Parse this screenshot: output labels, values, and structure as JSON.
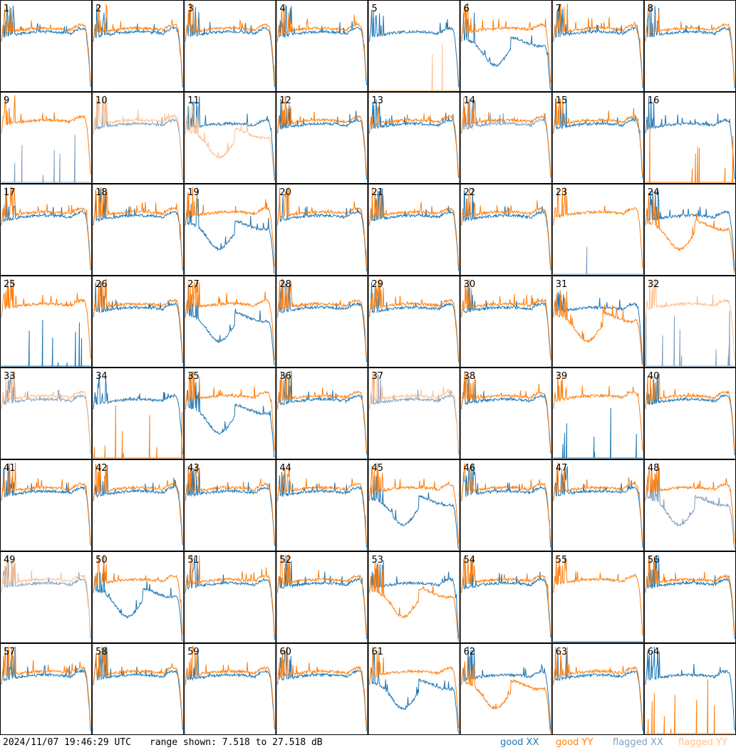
{
  "footer": {
    "timestamp": "2024/11/07 19:46:29 UTC",
    "range": "range shown: 7.518 to 27.518 dB",
    "legend": [
      {
        "label": "good XX",
        "color": "#1f77b4"
      },
      {
        "label": "good YY",
        "color": "#ff7f0e"
      },
      {
        "label": "flagged XX",
        "color": "#7f9fbf"
      },
      {
        "label": "flagged YY",
        "color": "#ffbf8f"
      }
    ]
  },
  "chart_data": {
    "type": "line",
    "layout": "8x8 small multiples",
    "y_range_db": [
      7.518,
      27.518
    ],
    "colors": {
      "good_xx": "#1f77b4",
      "good_yy": "#ff7f0e",
      "flagged_xx": "#7f9fbf",
      "flagged_yy": "#ffbf8f"
    },
    "panels": [
      {
        "id": "1",
        "xx": "good",
        "yy": "good",
        "xxShape": "normal",
        "yyShape": "normal"
      },
      {
        "id": "2",
        "xx": "good",
        "yy": "good",
        "xxShape": "normal",
        "yyShape": "normal"
      },
      {
        "id": "3",
        "xx": "good",
        "yy": "good",
        "xxShape": "normal",
        "yyShape": "normal"
      },
      {
        "id": "4",
        "xx": "good",
        "yy": "good",
        "xxShape": "normal",
        "yyShape": "normal"
      },
      {
        "id": "5",
        "xx": "good",
        "yy": "flagged",
        "xxShape": "normal",
        "yyShape": "dead"
      },
      {
        "id": "6",
        "xx": "good",
        "yy": "good",
        "xxShape": "low",
        "yyShape": "normal"
      },
      {
        "id": "7",
        "xx": "good",
        "yy": "good",
        "xxShape": "normal",
        "yyShape": "normal"
      },
      {
        "id": "8",
        "xx": "good",
        "yy": "good",
        "xxShape": "normal",
        "yyShape": "normal"
      },
      {
        "id": "9",
        "xx": "flagged",
        "yy": "good",
        "xxShape": "dead",
        "yyShape": "normal"
      },
      {
        "id": "10",
        "xx": "flagged",
        "yy": "flagged",
        "xxShape": "normal",
        "yyShape": "normal"
      },
      {
        "id": "11",
        "xx": "good",
        "yy": "flagged",
        "xxShape": "normal",
        "yyShape": "low"
      },
      {
        "id": "12",
        "xx": "good",
        "yy": "good",
        "xxShape": "normal",
        "yyShape": "normal"
      },
      {
        "id": "13",
        "xx": "good",
        "yy": "good",
        "xxShape": "normal",
        "yyShape": "normal"
      },
      {
        "id": "14",
        "xx": "flagged",
        "yy": "good",
        "xxShape": "normal",
        "yyShape": "normal"
      },
      {
        "id": "15",
        "xx": "good",
        "yy": "good",
        "xxShape": "normal",
        "yyShape": "normal"
      },
      {
        "id": "16",
        "xx": "good",
        "yy": "good",
        "xxShape": "normal",
        "yyShape": "dead"
      },
      {
        "id": "17",
        "xx": "good",
        "yy": "good",
        "xxShape": "normal",
        "yyShape": "normal"
      },
      {
        "id": "18",
        "xx": "good",
        "yy": "good",
        "xxShape": "normal",
        "yyShape": "normal"
      },
      {
        "id": "19",
        "xx": "good",
        "yy": "good",
        "xxShape": "low",
        "yyShape": "normal"
      },
      {
        "id": "20",
        "xx": "good",
        "yy": "good",
        "xxShape": "normal",
        "yyShape": "normal"
      },
      {
        "id": "21",
        "xx": "good",
        "yy": "good",
        "xxShape": "normal",
        "yyShape": "normal"
      },
      {
        "id": "22",
        "xx": "good",
        "yy": "good",
        "xxShape": "normal",
        "yyShape": "normal"
      },
      {
        "id": "23",
        "xx": "flagged",
        "yy": "good",
        "xxShape": "dead",
        "yyShape": "normal"
      },
      {
        "id": "24",
        "xx": "good",
        "yy": "good",
        "xxShape": "normal",
        "yyShape": "low"
      },
      {
        "id": "25",
        "xx": "good",
        "yy": "good",
        "xxShape": "dead",
        "yyShape": "normal"
      },
      {
        "id": "26",
        "xx": "good",
        "yy": "good",
        "xxShape": "normal",
        "yyShape": "normal"
      },
      {
        "id": "27",
        "xx": "good",
        "yy": "good",
        "xxShape": "low",
        "yyShape": "normal"
      },
      {
        "id": "28",
        "xx": "good",
        "yy": "good",
        "xxShape": "normal",
        "yyShape": "normal"
      },
      {
        "id": "29",
        "xx": "good",
        "yy": "good",
        "xxShape": "normal",
        "yyShape": "normal"
      },
      {
        "id": "30",
        "xx": "good",
        "yy": "good",
        "xxShape": "normal",
        "yyShape": "normal"
      },
      {
        "id": "31",
        "xx": "good",
        "yy": "good",
        "xxShape": "normal",
        "yyShape": "low"
      },
      {
        "id": "32",
        "xx": "flagged",
        "yy": "flagged",
        "xxShape": "dead",
        "yyShape": "normal"
      },
      {
        "id": "33",
        "xx": "flagged",
        "yy": "flagged",
        "xxShape": "normal",
        "yyShape": "normal"
      },
      {
        "id": "34",
        "xx": "good",
        "yy": "good",
        "xxShape": "normal",
        "yyShape": "dead"
      },
      {
        "id": "35",
        "xx": "good",
        "yy": "good",
        "xxShape": "low",
        "yyShape": "normal"
      },
      {
        "id": "36",
        "xx": "good",
        "yy": "good",
        "xxShape": "normal",
        "yyShape": "normal"
      },
      {
        "id": "37",
        "xx": "flagged",
        "yy": "flagged",
        "xxShape": "normal",
        "yyShape": "normal"
      },
      {
        "id": "38",
        "xx": "good",
        "yy": "good",
        "xxShape": "normal",
        "yyShape": "normal"
      },
      {
        "id": "39",
        "xx": "good",
        "yy": "good",
        "xxShape": "dead",
        "yyShape": "normal"
      },
      {
        "id": "40",
        "xx": "good",
        "yy": "good",
        "xxShape": "normal",
        "yyShape": "normal"
      },
      {
        "id": "41",
        "xx": "good",
        "yy": "good",
        "xxShape": "normal",
        "yyShape": "normal"
      },
      {
        "id": "42",
        "xx": "good",
        "yy": "good",
        "xxShape": "normal",
        "yyShape": "normal"
      },
      {
        "id": "43",
        "xx": "good",
        "yy": "good",
        "xxShape": "normal",
        "yyShape": "normal"
      },
      {
        "id": "44",
        "xx": "good",
        "yy": "good",
        "xxShape": "normal",
        "yyShape": "normal"
      },
      {
        "id": "45",
        "xx": "good",
        "yy": "good",
        "xxShape": "low",
        "yyShape": "normal"
      },
      {
        "id": "46",
        "xx": "good",
        "yy": "good",
        "xxShape": "normal",
        "yyShape": "normal"
      },
      {
        "id": "47",
        "xx": "good",
        "yy": "good",
        "xxShape": "normal",
        "yyShape": "normal"
      },
      {
        "id": "48",
        "xx": "flagged",
        "yy": "good",
        "xxShape": "low",
        "yyShape": "normal"
      },
      {
        "id": "49",
        "xx": "flagged",
        "yy": "flagged",
        "xxShape": "normal",
        "yyShape": "normal"
      },
      {
        "id": "50",
        "xx": "good",
        "yy": "good",
        "xxShape": "low",
        "yyShape": "normal"
      },
      {
        "id": "51",
        "xx": "good",
        "yy": "good",
        "xxShape": "normal",
        "yyShape": "normal"
      },
      {
        "id": "52",
        "xx": "good",
        "yy": "good",
        "xxShape": "normal",
        "yyShape": "normal"
      },
      {
        "id": "53",
        "xx": "good",
        "yy": "good",
        "xxShape": "normal",
        "yyShape": "low"
      },
      {
        "id": "54",
        "xx": "good",
        "yy": "good",
        "xxShape": "normal",
        "yyShape": "normal"
      },
      {
        "id": "55",
        "xx": "good",
        "yy": "good",
        "xxShape": "dead",
        "yyShape": "normal"
      },
      {
        "id": "56",
        "xx": "good",
        "yy": "good",
        "xxShape": "normal",
        "yyShape": "normal"
      },
      {
        "id": "57",
        "xx": "good",
        "yy": "good",
        "xxShape": "normal",
        "yyShape": "normal"
      },
      {
        "id": "58",
        "xx": "good",
        "yy": "good",
        "xxShape": "normal",
        "yyShape": "normal"
      },
      {
        "id": "59",
        "xx": "good",
        "yy": "good",
        "xxShape": "normal",
        "yyShape": "normal"
      },
      {
        "id": "60",
        "xx": "good",
        "yy": "good",
        "xxShape": "normal",
        "yyShape": "normal"
      },
      {
        "id": "61",
        "xx": "good",
        "yy": "good",
        "xxShape": "low",
        "yyShape": "normal"
      },
      {
        "id": "62",
        "xx": "good",
        "yy": "good",
        "xxShape": "normal",
        "yyShape": "low"
      },
      {
        "id": "63",
        "xx": "good",
        "yy": "good",
        "xxShape": "normal",
        "yyShape": "normal"
      },
      {
        "id": "64",
        "xx": "good",
        "yy": "good",
        "xxShape": "normal",
        "yyShape": "dead"
      }
    ]
  }
}
